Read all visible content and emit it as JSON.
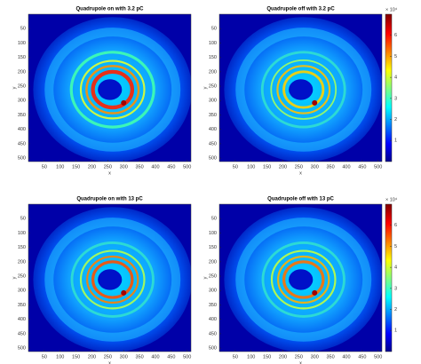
{
  "chart_data": [
    {
      "type": "image",
      "title": "Quadrupole on with 3.2 pC",
      "xlabel": "x",
      "ylabel": "y",
      "xlim": [
        0,
        512
      ],
      "ylim": [
        0,
        512
      ],
      "y_reversed": true,
      "xticks": [
        50,
        100,
        150,
        200,
        250,
        300,
        350,
        400,
        450,
        500
      ],
      "yticks": [
        50,
        100,
        150,
        200,
        250,
        300,
        350,
        400,
        450,
        500
      ],
      "colormap": "jet"
    },
    {
      "type": "image",
      "title": "Quadrupole off with 3.2 pC",
      "xlabel": "x",
      "ylabel": "y",
      "xlim": [
        0,
        512
      ],
      "ylim": [
        0,
        512
      ],
      "y_reversed": true,
      "xticks": [
        50,
        100,
        150,
        200,
        250,
        300,
        350,
        400,
        450,
        500
      ],
      "yticks": [
        50,
        100,
        150,
        200,
        250,
        300,
        350,
        400,
        450,
        500
      ],
      "colormap": "jet",
      "colorbar": {
        "clim": [
          0,
          7
        ],
        "ticks": [
          1,
          2,
          3,
          4,
          5,
          6
        ],
        "multiplier": "× 10⁴"
      }
    },
    {
      "type": "image",
      "title": "Quadrupole on with 13 pC",
      "xlabel": "x",
      "ylabel": "y",
      "xlim": [
        0,
        512
      ],
      "ylim": [
        0,
        512
      ],
      "y_reversed": true,
      "xticks": [
        50,
        100,
        150,
        200,
        250,
        300,
        350,
        400,
        450,
        500
      ],
      "yticks": [
        50,
        100,
        150,
        200,
        250,
        300,
        350,
        400,
        450,
        500
      ],
      "colormap": "jet"
    },
    {
      "type": "image",
      "title": "Quadrupole off with 13 pC",
      "xlabel": "x",
      "ylabel": "y",
      "xlim": [
        0,
        512
      ],
      "ylim": [
        0,
        512
      ],
      "y_reversed": true,
      "xticks": [
        50,
        100,
        150,
        200,
        250,
        300,
        350,
        400,
        450,
        500
      ],
      "yticks": [
        50,
        100,
        150,
        200,
        250,
        300,
        350,
        400,
        450,
        500
      ],
      "colormap": "jet",
      "colorbar": {
        "clim": [
          0,
          7
        ],
        "ticks": [
          1,
          2,
          3,
          4,
          5,
          6
        ],
        "multiplier": "× 10⁴"
      }
    }
  ]
}
